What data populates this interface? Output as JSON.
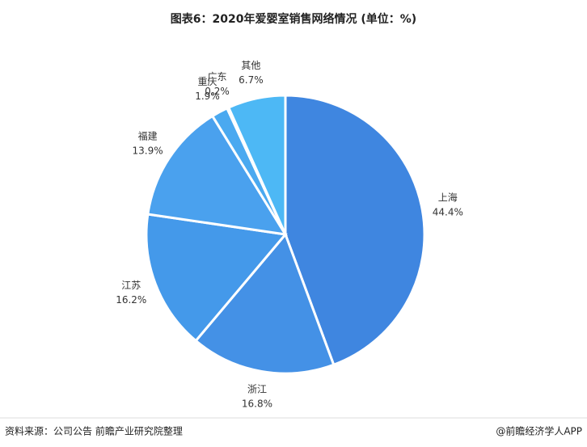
{
  "chart_data": {
    "type": "pie",
    "title": "图表6：2020年爱婴室销售网络情况 (单位：%)",
    "categories": [
      "上海",
      "浙江",
      "江苏",
      "福建",
      "重庆",
      "广东",
      "其他"
    ],
    "values": [
      44.4,
      16.8,
      16.2,
      13.9,
      1.9,
      0.2,
      6.7
    ],
    "value_labels": [
      "44.4%",
      "16.8%",
      "16.2%",
      "13.9%",
      "1.9%",
      "0.2%",
      "6.7%"
    ],
    "colors": [
      "#3f86e0",
      "#4491e6",
      "#4499ea",
      "#4aa1ee",
      "#4aa9f0",
      "#4db0f2",
      "#4db8f5"
    ],
    "source": "资料来源：公司公告 前瞻产业研究院整理",
    "credit": "@前瞻经济学人APP"
  }
}
